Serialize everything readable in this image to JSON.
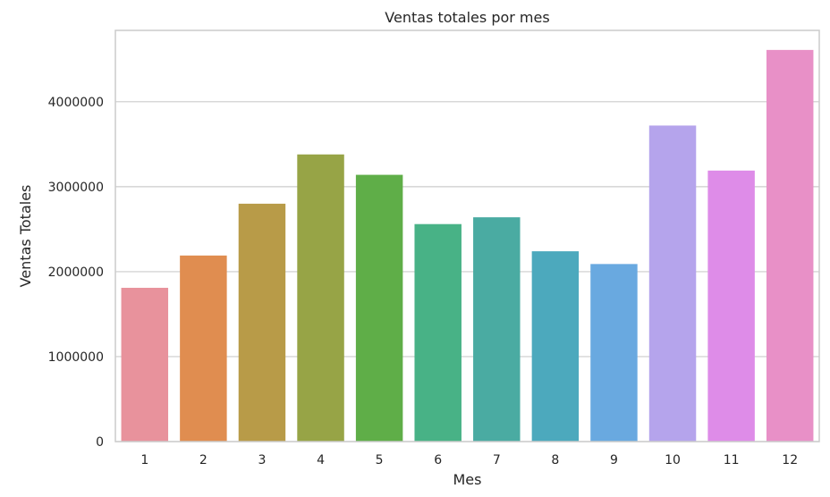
{
  "chart_data": {
    "type": "bar",
    "title": "Ventas totales por mes",
    "xlabel": "Mes",
    "ylabel": "Ventas Totales",
    "categories": [
      "1",
      "2",
      "3",
      "4",
      "5",
      "6",
      "7",
      "8",
      "9",
      "10",
      "11",
      "12"
    ],
    "values": [
      1810000,
      2190000,
      2800000,
      3380000,
      3140000,
      2560000,
      2640000,
      2240000,
      2090000,
      3720000,
      3190000,
      4610000
    ],
    "colors": [
      "#e8929c",
      "#e08d50",
      "#b89b48",
      "#97a446",
      "#5fae48",
      "#48b286",
      "#4aaba2",
      "#4ca9bd",
      "#69a9e0",
      "#b5a4ec",
      "#de8ce8",
      "#e890c7"
    ],
    "ylim": [
      0,
      4840000
    ],
    "yticks": [
      0,
      1000000,
      2000000,
      3000000,
      4000000
    ],
    "ytick_labels": [
      "0",
      "1000000",
      "2000000",
      "3000000",
      "4000000"
    ],
    "grid": true,
    "legend": false
  }
}
